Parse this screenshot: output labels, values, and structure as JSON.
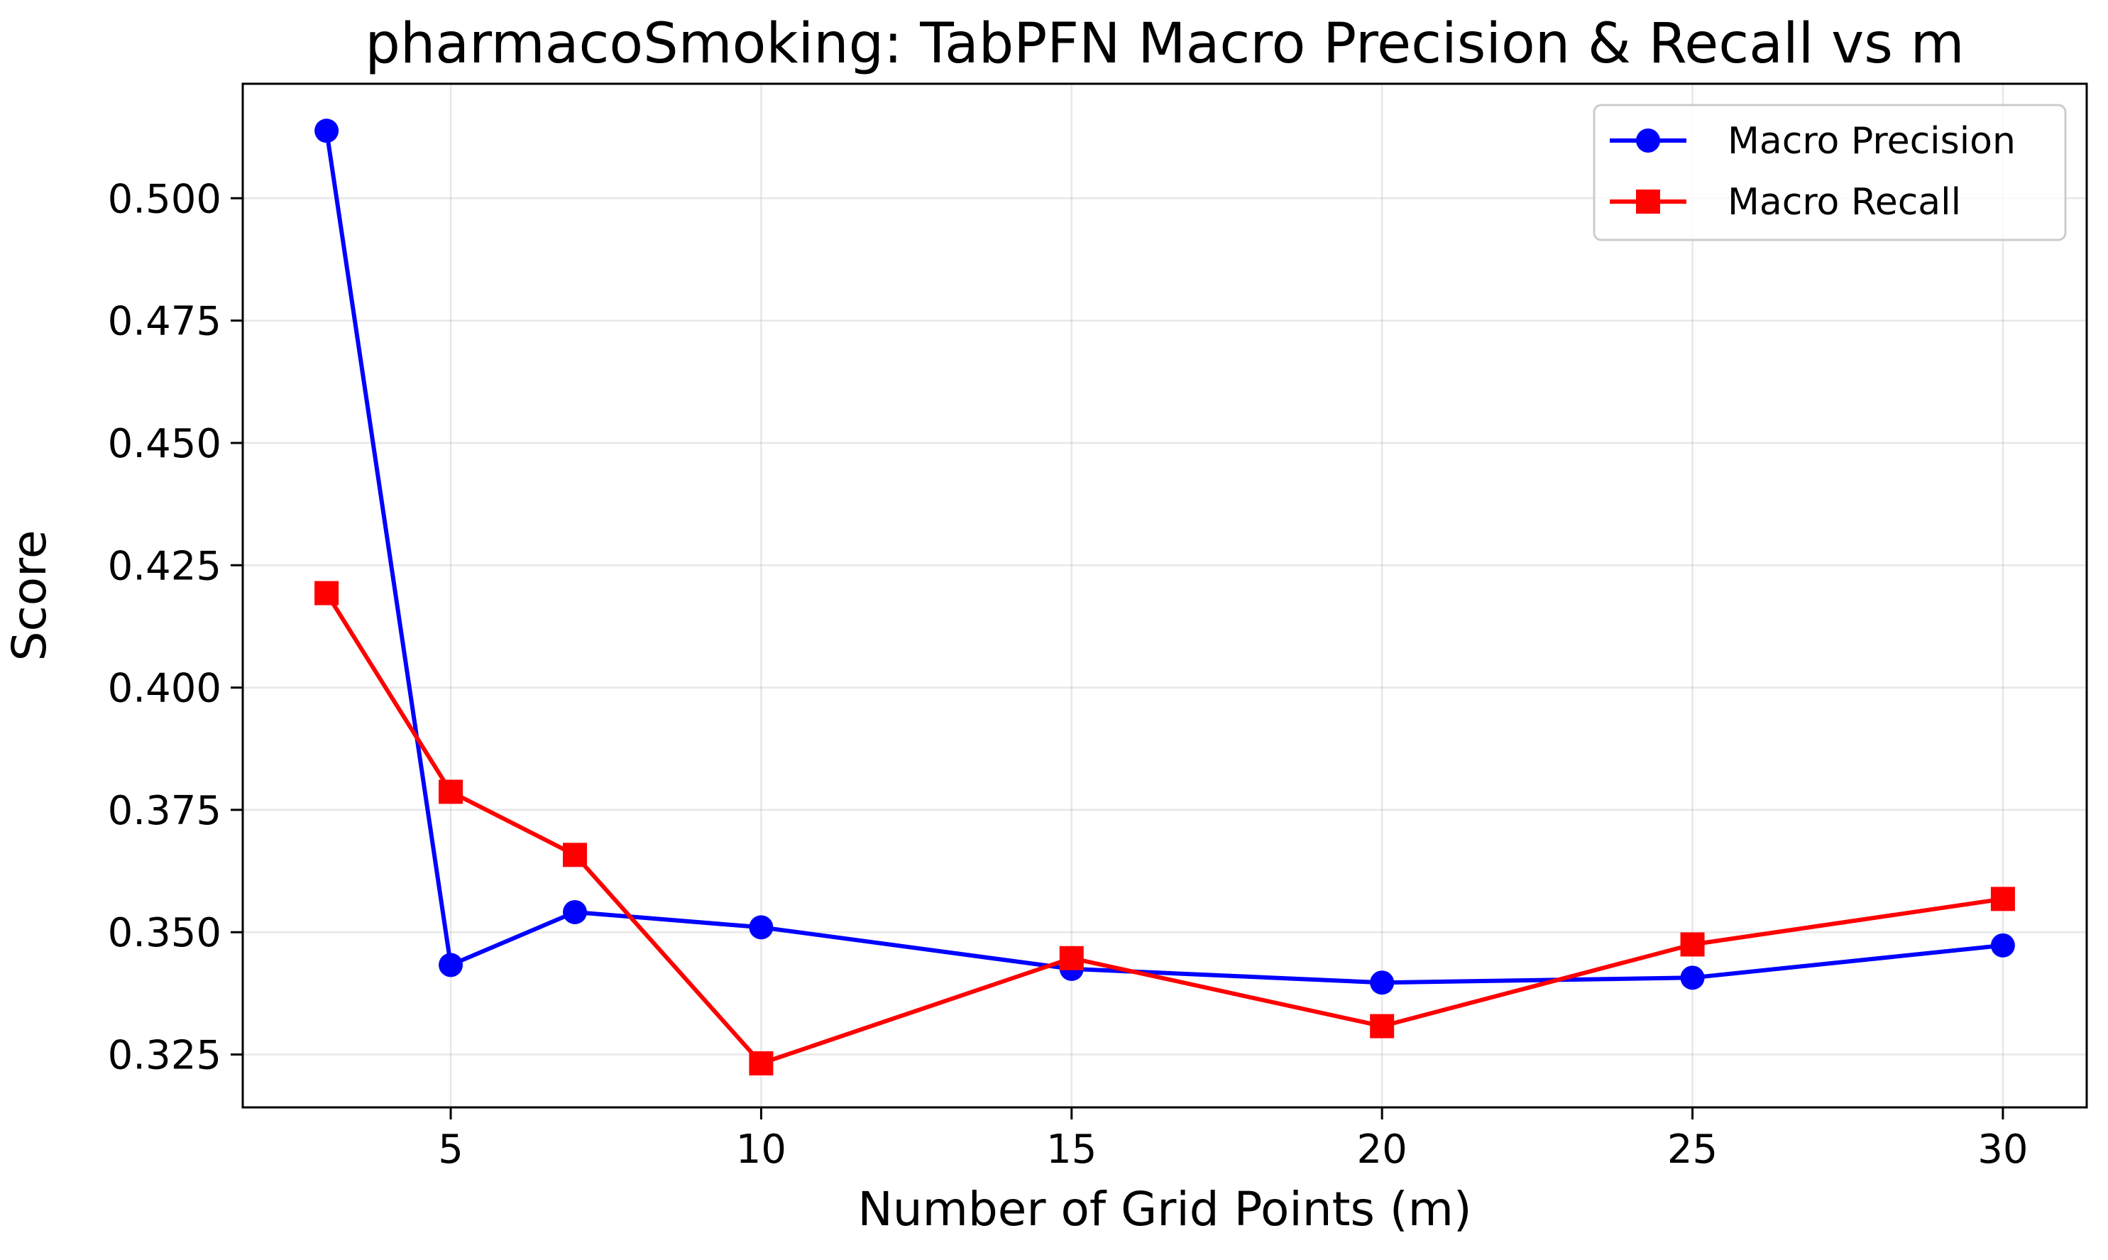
{
  "chart_data": {
    "type": "line",
    "title": "pharmacoSmoking: TabPFN Macro Precision & Recall vs m",
    "xlabel": "Number of Grid Points (m)",
    "ylabel": "Score",
    "x": [
      3,
      5,
      7,
      10,
      15,
      20,
      25,
      30
    ],
    "xlim": [
      1.65,
      31.35
    ],
    "ylim": [
      0.3142,
      0.5234
    ],
    "xticks": [
      5,
      10,
      15,
      20,
      25,
      30
    ],
    "yticks": [
      0.325,
      0.35,
      0.375,
      0.4,
      0.425,
      0.45,
      0.475,
      0.5
    ],
    "ytick_labels": [
      "0.325",
      "0.350",
      "0.375",
      "0.400",
      "0.425",
      "0.450",
      "0.475",
      "0.500"
    ],
    "grid": true,
    "legend_position": "top-right",
    "series": [
      {
        "name": "Macro Precision",
        "color": "#0000ff",
        "marker": "circle",
        "values": [
          0.5138,
          0.3433,
          0.3541,
          0.351,
          0.3425,
          0.3397,
          0.3407,
          0.3473
        ]
      },
      {
        "name": "Macro Recall",
        "color": "#ff0000",
        "marker": "square",
        "values": [
          0.4193,
          0.3787,
          0.3658,
          0.3232,
          0.3447,
          0.3308,
          0.3475,
          0.3568
        ]
      }
    ]
  }
}
